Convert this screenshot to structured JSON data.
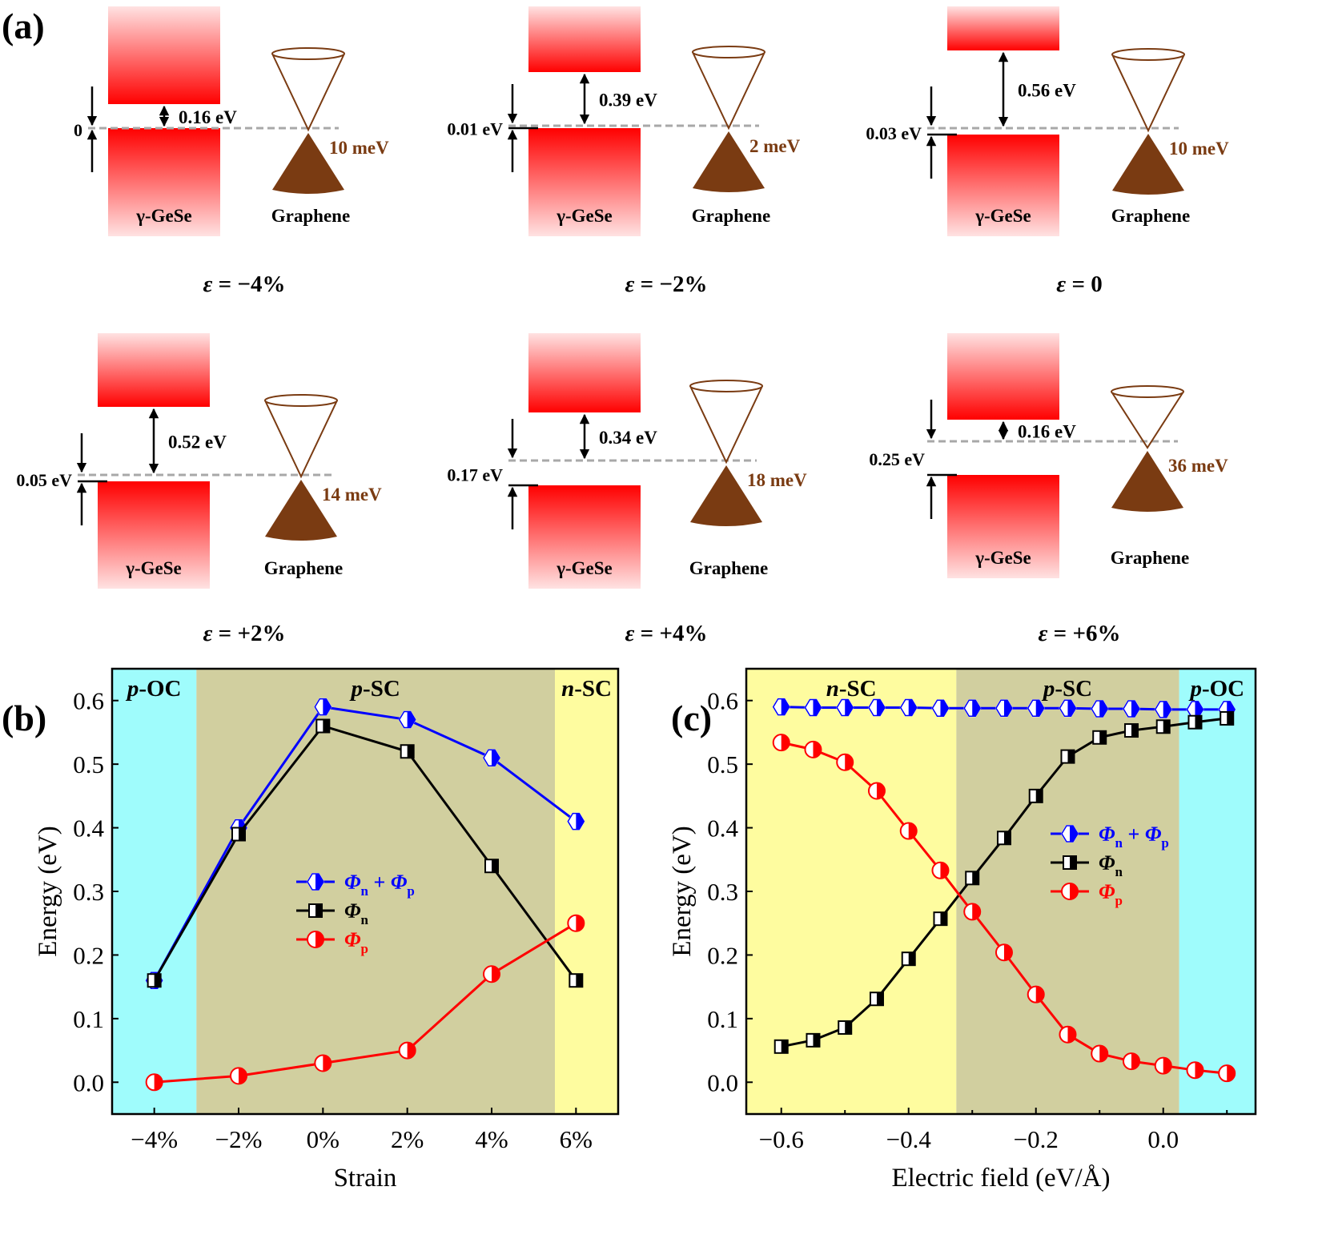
{
  "panel_labels": {
    "a": "(a)",
    "b": "(b)",
    "c": "(c)"
  },
  "colors": {
    "band_red": "#ff0000",
    "band_fade": "#ffe0e0",
    "cone_brown": "#7a3b12",
    "fermi_dash": "#a8a8a8",
    "region_cyan": "#9ffcfc",
    "region_olive": "#d1cf9f",
    "region_yellow": "#fefc9f",
    "series_sum": "#0000ff",
    "series_n": "#000000",
    "series_p": "#ff0000"
  },
  "panel_a": {
    "material_label": "γ-GeSe",
    "graphene_label": "Graphene",
    "diagrams": [
      {
        "strain_label": "ε = −4%",
        "phi_p_label": "0",
        "cb_gap_label": "0.16 eV",
        "dirac_shift_label": "10 meV",
        "phi_p": 0.0,
        "phi_n": 0.16
      },
      {
        "strain_label": "ε = −2%",
        "phi_p_label": "0.01 eV",
        "cb_gap_label": "0.39 eV",
        "dirac_shift_label": "2 meV",
        "phi_p": 0.01,
        "phi_n": 0.39
      },
      {
        "strain_label": "ε = 0",
        "phi_p_label": "0.03 eV",
        "cb_gap_label": "0.56 eV",
        "dirac_shift_label": "10 meV",
        "phi_p": 0.03,
        "phi_n": 0.56
      },
      {
        "strain_label": "ε = +2%",
        "phi_p_label": "0.05 eV",
        "cb_gap_label": "0.52 eV",
        "dirac_shift_label": "14 meV",
        "phi_p": 0.05,
        "phi_n": 0.52
      },
      {
        "strain_label": "ε = +4%",
        "phi_p_label": "0.17 eV",
        "cb_gap_label": "0.34 eV",
        "dirac_shift_label": "18 meV",
        "phi_p": 0.17,
        "phi_n": 0.34
      },
      {
        "strain_label": "ε = +6%",
        "phi_p_label": "0.25 eV",
        "cb_gap_label": "0.16 eV",
        "dirac_shift_label": "36 meV",
        "phi_p": 0.25,
        "phi_n": 0.16
      }
    ]
  },
  "chart_data": [
    {
      "id": "b",
      "type": "line",
      "title": "",
      "xlabel": "Strain",
      "ylabel": "Energy (eV)",
      "x": [
        -4,
        -2,
        0,
        2,
        4,
        6
      ],
      "xtick_labels": [
        "−4%",
        "−2%",
        "0%",
        "2%",
        "4%",
        "6%"
      ],
      "xlim": [
        -5,
        7
      ],
      "ylim": [
        -0.05,
        0.65
      ],
      "yticks": [
        0.0,
        0.1,
        0.2,
        0.3,
        0.4,
        0.5,
        0.6
      ],
      "ytick_labels": [
        "0.0",
        "0.1",
        "0.2",
        "0.3",
        "0.4",
        "0.5",
        "0.6"
      ],
      "regions": [
        {
          "label_italic": "p",
          "label_rest": "-OC",
          "from": -5,
          "to": -3,
          "color_key": "region_cyan"
        },
        {
          "label_italic": "p",
          "label_rest": "-SC",
          "from": -3,
          "to": 5.5,
          "color_key": "region_olive"
        },
        {
          "label_italic": "n",
          "label_rest": "-SC",
          "from": 5.5,
          "to": 7,
          "color_key": "region_yellow"
        }
      ],
      "series": [
        {
          "name": "Φn + Φp",
          "legend_main": "Φ",
          "legend_sub1": "n",
          "legend_mid": " + Φ",
          "legend_sub2": "p",
          "marker": "hexagon",
          "color_key": "series_sum",
          "values": [
            0.16,
            0.4,
            0.59,
            0.57,
            0.51,
            0.41
          ]
        },
        {
          "name": "Φn",
          "legend_main": "Φ",
          "legend_sub1": "n",
          "marker": "square",
          "color_key": "series_n",
          "values": [
            0.16,
            0.39,
            0.56,
            0.52,
            0.34,
            0.16
          ]
        },
        {
          "name": "Φp",
          "legend_main": "Φ",
          "legend_sub1": "p",
          "marker": "circle",
          "color_key": "series_p",
          "values": [
            0.0,
            0.01,
            0.03,
            0.05,
            0.17,
            0.25
          ]
        }
      ],
      "legend_position": "center",
      "grid": false
    },
    {
      "id": "c",
      "type": "line",
      "title": "",
      "xlabel": "Electric field (eV/Å)",
      "ylabel": "Energy (eV)",
      "x": [
        -0.6,
        -0.55,
        -0.5,
        -0.45,
        -0.4,
        -0.35,
        -0.3,
        -0.25,
        -0.2,
        -0.15,
        -0.1,
        -0.05,
        0.0,
        0.05,
        0.1
      ],
      "xtick_values": [
        -0.6,
        -0.4,
        -0.2,
        0.0
      ],
      "xtick_labels": [
        "−0.6",
        "−0.4",
        "−0.2",
        "0.0"
      ],
      "xlim": [
        -0.655,
        0.145
      ],
      "ylim": [
        -0.05,
        0.65
      ],
      "yticks": [
        0.0,
        0.1,
        0.2,
        0.3,
        0.4,
        0.5,
        0.6
      ],
      "ytick_labels": [
        "0.0",
        "0.1",
        "0.2",
        "0.3",
        "0.4",
        "0.5",
        "0.6"
      ],
      "regions": [
        {
          "label_italic": "n",
          "label_rest": "-SC",
          "from": -0.655,
          "to": -0.325,
          "color_key": "region_yellow"
        },
        {
          "label_italic": "p",
          "label_rest": "-SC",
          "from": -0.325,
          "to": 0.025,
          "color_key": "region_olive"
        },
        {
          "label_italic": "p",
          "label_rest": "-OC",
          "from": 0.025,
          "to": 0.145,
          "color_key": "region_cyan"
        }
      ],
      "series": [
        {
          "name": "Φn + Φp",
          "legend_main": "Φ",
          "legend_sub1": "n",
          "legend_mid": " + Φ",
          "legend_sub2": "p",
          "marker": "hexagon",
          "color_key": "series_sum",
          "values": [
            0.59,
            0.589,
            0.589,
            0.589,
            0.589,
            0.588,
            0.588,
            0.588,
            0.588,
            0.588,
            0.587,
            0.587,
            0.586,
            0.586,
            0.586
          ]
        },
        {
          "name": "Φn",
          "legend_main": "Φ",
          "legend_sub1": "n",
          "marker": "square",
          "color_key": "series_n",
          "values": [
            0.056,
            0.066,
            0.086,
            0.131,
            0.194,
            0.257,
            0.321,
            0.384,
            0.45,
            0.512,
            0.542,
            0.553,
            0.559,
            0.566,
            0.572
          ]
        },
        {
          "name": "Φp",
          "legend_main": "Φ",
          "legend_sub1": "p",
          "marker": "circle",
          "color_key": "series_p",
          "values": [
            0.534,
            0.523,
            0.503,
            0.458,
            0.395,
            0.333,
            0.268,
            0.204,
            0.138,
            0.075,
            0.045,
            0.033,
            0.026,
            0.019,
            0.014
          ]
        }
      ],
      "legend_position": "center-right",
      "grid": false
    }
  ]
}
